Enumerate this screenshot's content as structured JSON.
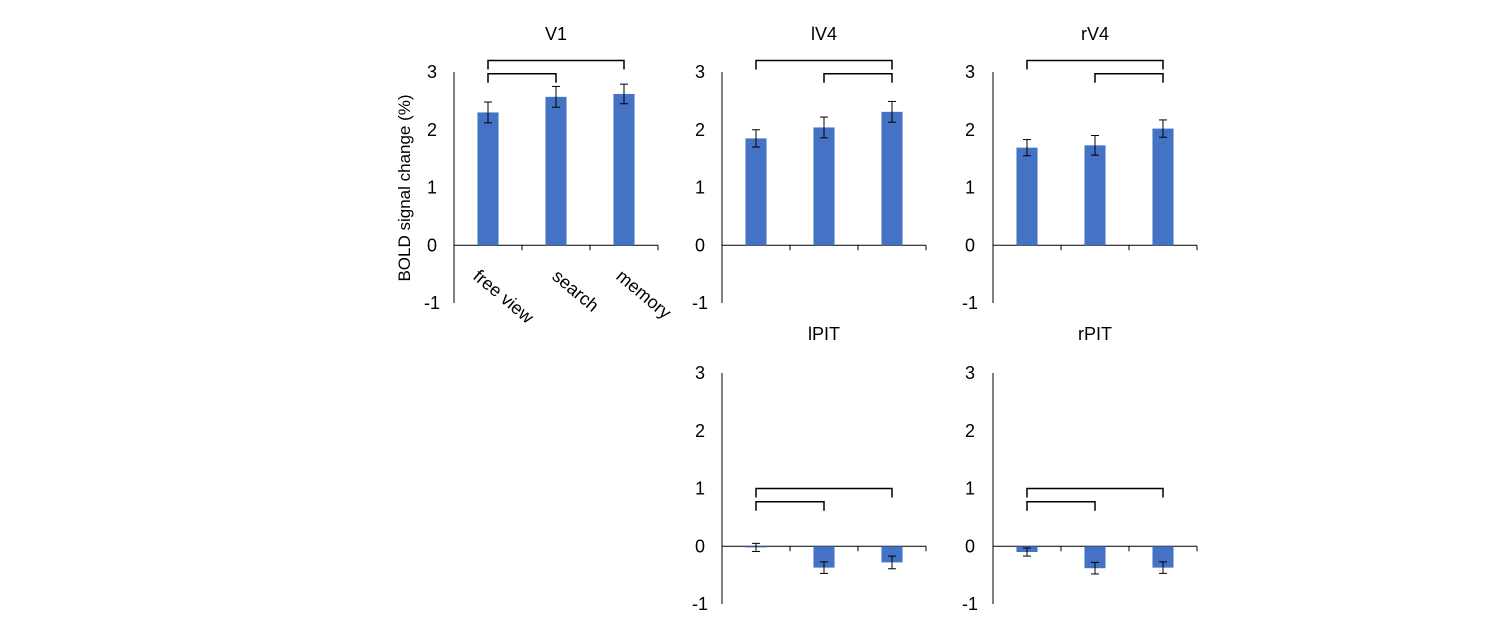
{
  "colors": {
    "bar": "#4472C4",
    "axis": "#000000",
    "bracket": "#000000"
  },
  "shared": {
    "ylabel": "BOLD signal change (%)",
    "categories": [
      "free view",
      "search",
      "memory"
    ]
  },
  "chart_data": [
    {
      "id": "v1",
      "type": "bar",
      "title": "V1",
      "categories": [
        "free view",
        "search",
        "memory"
      ],
      "ylim": [
        -1,
        3
      ],
      "yticks": [
        "3",
        "2",
        "1",
        "0",
        "-1"
      ],
      "values": [
        2.3,
        2.57,
        2.62
      ],
      "errors": [
        0.18,
        0.18,
        0.17
      ],
      "brackets": [
        {
          "from": 0,
          "to": 2,
          "level": 3.2
        },
        {
          "from": 0,
          "to": 1,
          "level": 2.97
        }
      ]
    },
    {
      "id": "lv4",
      "type": "bar",
      "title": "lV4",
      "categories": [
        "free view",
        "search",
        "memory"
      ],
      "ylim": [
        -1,
        3
      ],
      "yticks": [
        "3",
        "2",
        "1",
        "0",
        "-1"
      ],
      "values": [
        1.85,
        2.04,
        2.31
      ],
      "errors": [
        0.15,
        0.18,
        0.18
      ],
      "brackets": [
        {
          "from": 0,
          "to": 2,
          "level": 3.2
        },
        {
          "from": 1,
          "to": 2,
          "level": 2.97
        }
      ]
    },
    {
      "id": "rv4",
      "type": "bar",
      "title": "rV4",
      "categories": [
        "free view",
        "search",
        "memory"
      ],
      "ylim": [
        -1,
        3
      ],
      "yticks": [
        "3",
        "2",
        "1",
        "0",
        "-1"
      ],
      "values": [
        1.69,
        1.73,
        2.02
      ],
      "errors": [
        0.14,
        0.17,
        0.15
      ],
      "brackets": [
        {
          "from": 0,
          "to": 2,
          "level": 3.2
        },
        {
          "from": 1,
          "to": 2,
          "level": 2.97
        }
      ]
    },
    {
      "id": "lpit",
      "type": "bar",
      "title": "lPIT",
      "categories": [
        "free view",
        "search",
        "memory"
      ],
      "ylim": [
        -1,
        3
      ],
      "yticks": [
        "3",
        "2",
        "1",
        "0",
        "-1"
      ],
      "values": [
        -0.02,
        -0.37,
        -0.28
      ],
      "errors": [
        0.07,
        0.1,
        0.11
      ],
      "brackets": [
        {
          "from": 0,
          "to": 2,
          "level": 1.0
        },
        {
          "from": 0,
          "to": 1,
          "level": 0.77
        }
      ]
    },
    {
      "id": "rpit",
      "type": "bar",
      "title": "rPIT",
      "categories": [
        "free view",
        "search",
        "memory"
      ],
      "ylim": [
        -1,
        3
      ],
      "yticks": [
        "3",
        "2",
        "1",
        "0",
        "-1"
      ],
      "values": [
        -0.1,
        -0.38,
        -0.37
      ],
      "errors": [
        0.07,
        0.1,
        0.1
      ],
      "brackets": [
        {
          "from": 0,
          "to": 2,
          "level": 1.0
        },
        {
          "from": 0,
          "to": 1,
          "level": 0.77
        }
      ]
    }
  ]
}
